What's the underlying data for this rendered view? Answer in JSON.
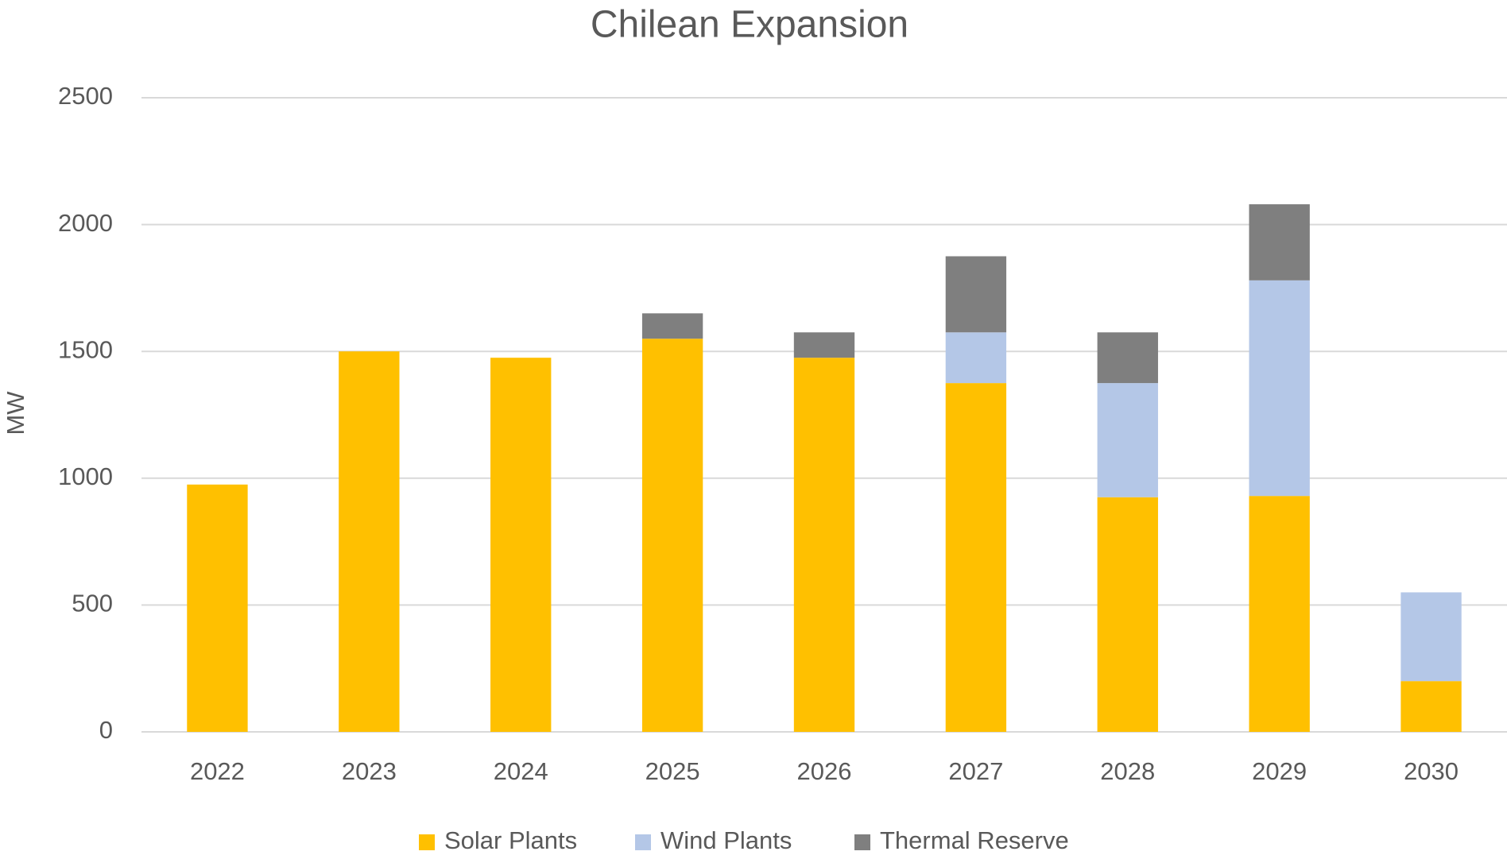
{
  "chart_data": {
    "type": "stacked_bar",
    "title": "Chilean Expansion",
    "y_label": "MW",
    "categories": [
      "2022",
      "2023",
      "2024",
      "2025",
      "2026",
      "2027",
      "2028",
      "2029",
      "2030"
    ],
    "series": [
      {
        "name": "Solar Plants",
        "color": "#ffc000",
        "values": [
          975,
          1500,
          1475,
          1550,
          1475,
          1375,
          925,
          930,
          200
        ]
      },
      {
        "name": "Wind Plants",
        "color": "#b4c7e7",
        "values": [
          0,
          0,
          0,
          0,
          0,
          200,
          450,
          850,
          350
        ]
      },
      {
        "name": "Thermal Reserve",
        "color": "#7f7f7f",
        "values": [
          0,
          0,
          0,
          100,
          100,
          300,
          200,
          300,
          0
        ]
      }
    ],
    "ylim": [
      0,
      2500
    ],
    "yticks": [
      0,
      500,
      1000,
      1500,
      2000,
      2500
    ],
    "grid": true,
    "legend": "bottom"
  }
}
